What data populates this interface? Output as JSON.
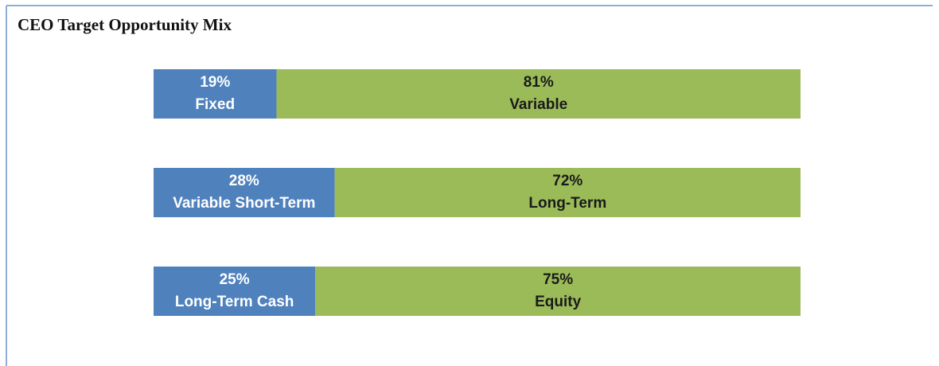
{
  "title": "CEO Target Opportunity Mix",
  "chart_data": [
    {
      "type": "bar",
      "stacked": true,
      "xlim": [
        0,
        100
      ],
      "series": [
        {
          "name": "Fixed",
          "color": "#4f81bd",
          "values": [
            19
          ],
          "value_labels": [
            "19%"
          ]
        },
        {
          "name": "Variable",
          "color": "#9bbb59",
          "values": [
            81
          ],
          "value_labels": [
            "81%"
          ]
        }
      ]
    },
    {
      "type": "bar",
      "stacked": true,
      "xlim": [
        0,
        100
      ],
      "series": [
        {
          "name": "Variable Short-Term",
          "color": "#4f81bd",
          "values": [
            28
          ],
          "value_labels": [
            "28%"
          ]
        },
        {
          "name": "Long-Term",
          "color": "#9bbb59",
          "values": [
            72
          ],
          "value_labels": [
            "72%"
          ]
        }
      ]
    },
    {
      "type": "bar",
      "stacked": true,
      "xlim": [
        0,
        100
      ],
      "series": [
        {
          "name": "Long-Term Cash",
          "color": "#4f81bd",
          "values": [
            25
          ],
          "value_labels": [
            "25%"
          ]
        },
        {
          "name": "Equity",
          "color": "#9bbb59",
          "values": [
            75
          ],
          "value_labels": [
            "75%"
          ]
        }
      ]
    }
  ]
}
